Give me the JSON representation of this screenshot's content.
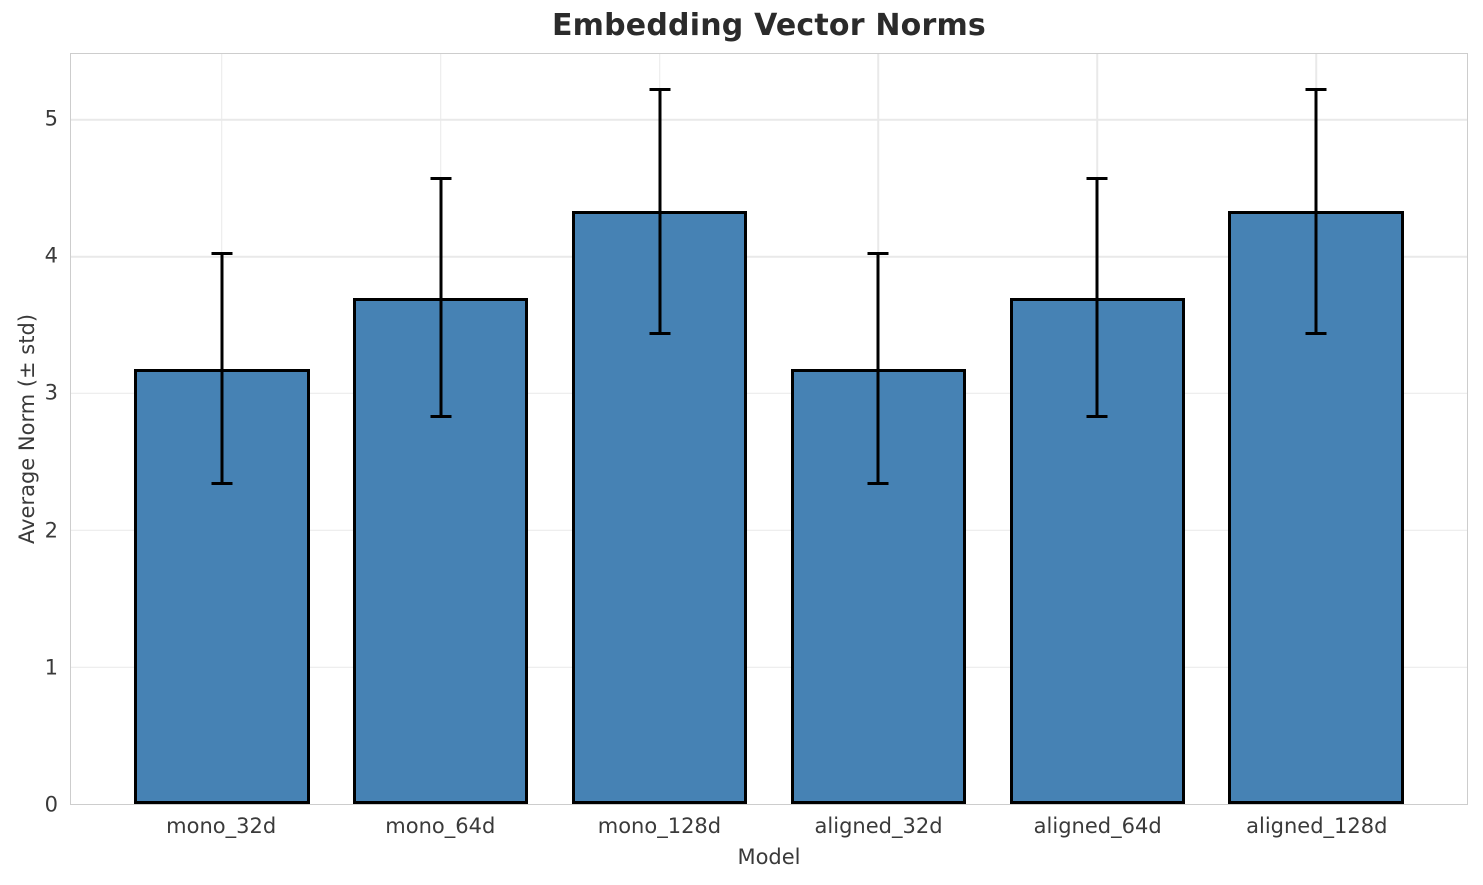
{
  "chart_data": {
    "type": "bar",
    "title": "Embedding Vector Norms",
    "xlabel": "Model",
    "ylabel": "Average Norm (± std)",
    "categories": [
      "mono_32d",
      "mono_64d",
      "mono_128d",
      "aligned_32d",
      "aligned_64d",
      "aligned_128d"
    ],
    "values": [
      3.18,
      3.7,
      4.33,
      3.18,
      3.7,
      4.33
    ],
    "errors": [
      0.84,
      0.87,
      0.89,
      0.84,
      0.87,
      0.89
    ],
    "error_style": "symmetric ± std with caps",
    "yticks": [
      0,
      1,
      2,
      3,
      4,
      5
    ],
    "ylim": [
      0,
      5.48
    ],
    "xlim": [
      -0.69,
      5.69
    ],
    "bar_width_units": 0.8,
    "grid": true,
    "legend": false,
    "colors": {
      "bar_fill": "#4682B4",
      "bar_edge": "#000000",
      "error": "#000000",
      "grid": "#E9E9E9",
      "spine": "#CDCDCD",
      "title_text": "#2B2B2B",
      "tick_text": "#3A3A3A"
    }
  }
}
